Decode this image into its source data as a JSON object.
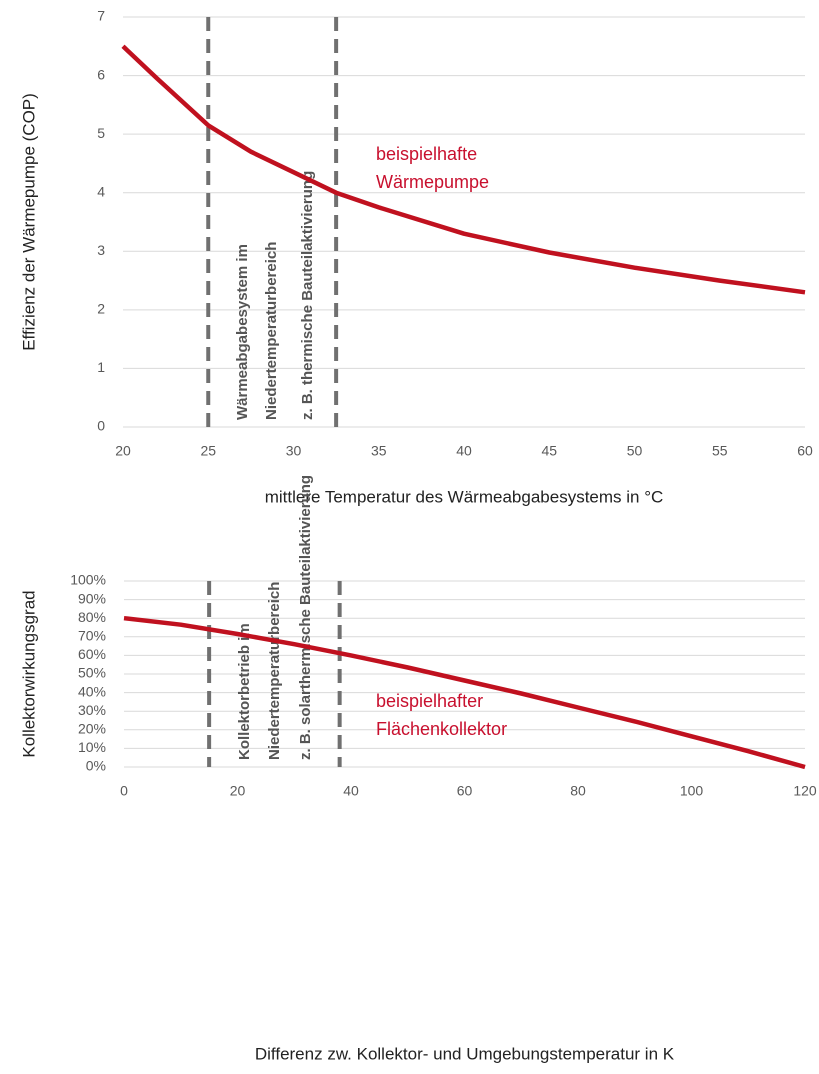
{
  "chart_data": [
    {
      "type": "line",
      "x_label": "mittlere Temperatur des Wärmeabgabesystems in °C",
      "y_label": "Effizienz der Wärmepumpe (COP)",
      "x": [
        20,
        22,
        25,
        27.5,
        30,
        32.5,
        35,
        40,
        45,
        50,
        55,
        60
      ],
      "values": [
        6.5,
        5.95,
        5.15,
        4.7,
        4.35,
        4.0,
        3.75,
        3.3,
        2.98,
        2.72,
        2.5,
        2.3
      ],
      "color": "#c0111f",
      "xlim": [
        20,
        60
      ],
      "xticks": [
        20,
        25,
        30,
        35,
        40,
        45,
        50,
        55,
        60
      ],
      "ylim": [
        0,
        7
      ],
      "yticks": [
        0,
        1,
        2,
        3,
        4,
        5,
        6,
        7
      ],
      "grid": true,
      "vlines": [
        25,
        32.5
      ],
      "region_annotation": [
        "Wärmeabgabesystem im",
        "Niedertemperaturbereich",
        "z. B. thermische Bauteilaktivierung"
      ],
      "curve_annotation": [
        "beispielhafte",
        "Wärmepumpe"
      ]
    },
    {
      "type": "line",
      "x_label": "Differenz zw. Kollektor- und Umgebungstemperatur in K",
      "y_label": "Kollektorwirkungsgrad",
      "x": [
        0,
        10,
        20,
        30,
        40,
        50,
        60,
        70,
        80,
        90,
        100,
        110,
        120
      ],
      "values": [
        80,
        76.5,
        71.5,
        66,
        60,
        53.5,
        46.5,
        39.5,
        32,
        24.5,
        16.5,
        8.5,
        0
      ],
      "color": "#c0111f",
      "xlim": [
        0,
        120
      ],
      "xticks": [
        0,
        20,
        40,
        60,
        80,
        100,
        120
      ],
      "ylim": [
        0,
        100
      ],
      "yticks": [
        {
          "value": 0,
          "label": "0%"
        },
        {
          "value": 10,
          "label": "10%"
        },
        {
          "value": 20,
          "label": "20%"
        },
        {
          "value": 30,
          "label": "30%"
        },
        {
          "value": 40,
          "label": "40%"
        },
        {
          "value": 50,
          "label": "50%"
        },
        {
          "value": 60,
          "label": "60%"
        },
        {
          "value": 70,
          "label": "70%"
        },
        {
          "value": 80,
          "label": "80%"
        },
        {
          "value": 90,
          "label": "90%"
        },
        {
          "value": 100,
          "label": "100%"
        }
      ],
      "grid": true,
      "vlines": [
        15,
        38
      ],
      "region_annotation": [
        "Kollektorbetrieb im",
        "Niedertemperaturbereich",
        "z. B. solarthermische Bauteilaktivierung"
      ],
      "curve_annotation": [
        "beispielhafter",
        "Flächenkollektor"
      ]
    }
  ]
}
